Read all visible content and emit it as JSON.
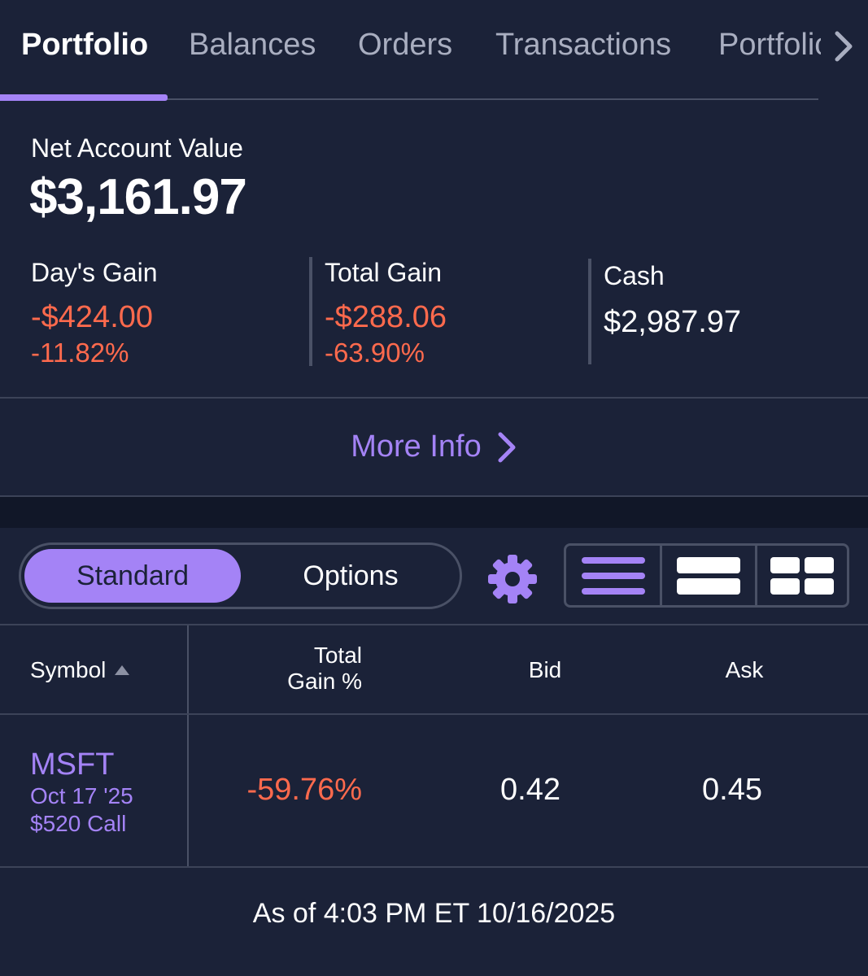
{
  "tabs": {
    "items": [
      {
        "label": "Portfolio",
        "active": true
      },
      {
        "label": "Balances",
        "active": false
      },
      {
        "label": "Orders",
        "active": false
      },
      {
        "label": "Transactions",
        "active": false
      },
      {
        "label": "Portfolio",
        "active": false
      }
    ],
    "next_icon": "chevron-right-icon"
  },
  "summary": {
    "net_label": "Net Account Value",
    "net_value": "$3,161.97",
    "days_gain": {
      "label": "Day's Gain",
      "amount": "-$424.00",
      "percent": "-11.82%"
    },
    "total_gain": {
      "label": "Total Gain",
      "amount": "-$288.06",
      "percent": "-63.90%"
    },
    "cash": {
      "label": "Cash",
      "amount": "$2,987.97"
    }
  },
  "more_info": {
    "label": "More Info",
    "icon": "chevron-right-icon"
  },
  "controls": {
    "segment": {
      "selected": "Standard",
      "options": [
        "Standard",
        "Options"
      ]
    },
    "settings_icon": "gear-icon",
    "view_modes": [
      "list-view-icon",
      "row-view-icon",
      "grid-view-icon"
    ],
    "selected_view": "list-view-icon"
  },
  "table": {
    "headers": {
      "symbol": "Symbol",
      "gain_line1": "Total",
      "gain_line2": "Gain %",
      "bid": "Bid",
      "ask": "Ask"
    },
    "sort": {
      "column": "Symbol",
      "direction": "ascending"
    },
    "rows": [
      {
        "symbol": "MSFT",
        "expiry": "Oct 17 '25",
        "strike": "$520 Call",
        "total_gain_pct": "-59.76%",
        "bid": "0.42",
        "ask": "0.45"
      }
    ]
  },
  "as_of": "As of 4:03 PM ET 10/16/2025",
  "colors": {
    "background": "#1b2238",
    "accent": "#a483f6",
    "negative": "#ff6a4d",
    "divider": "#4a5166"
  }
}
